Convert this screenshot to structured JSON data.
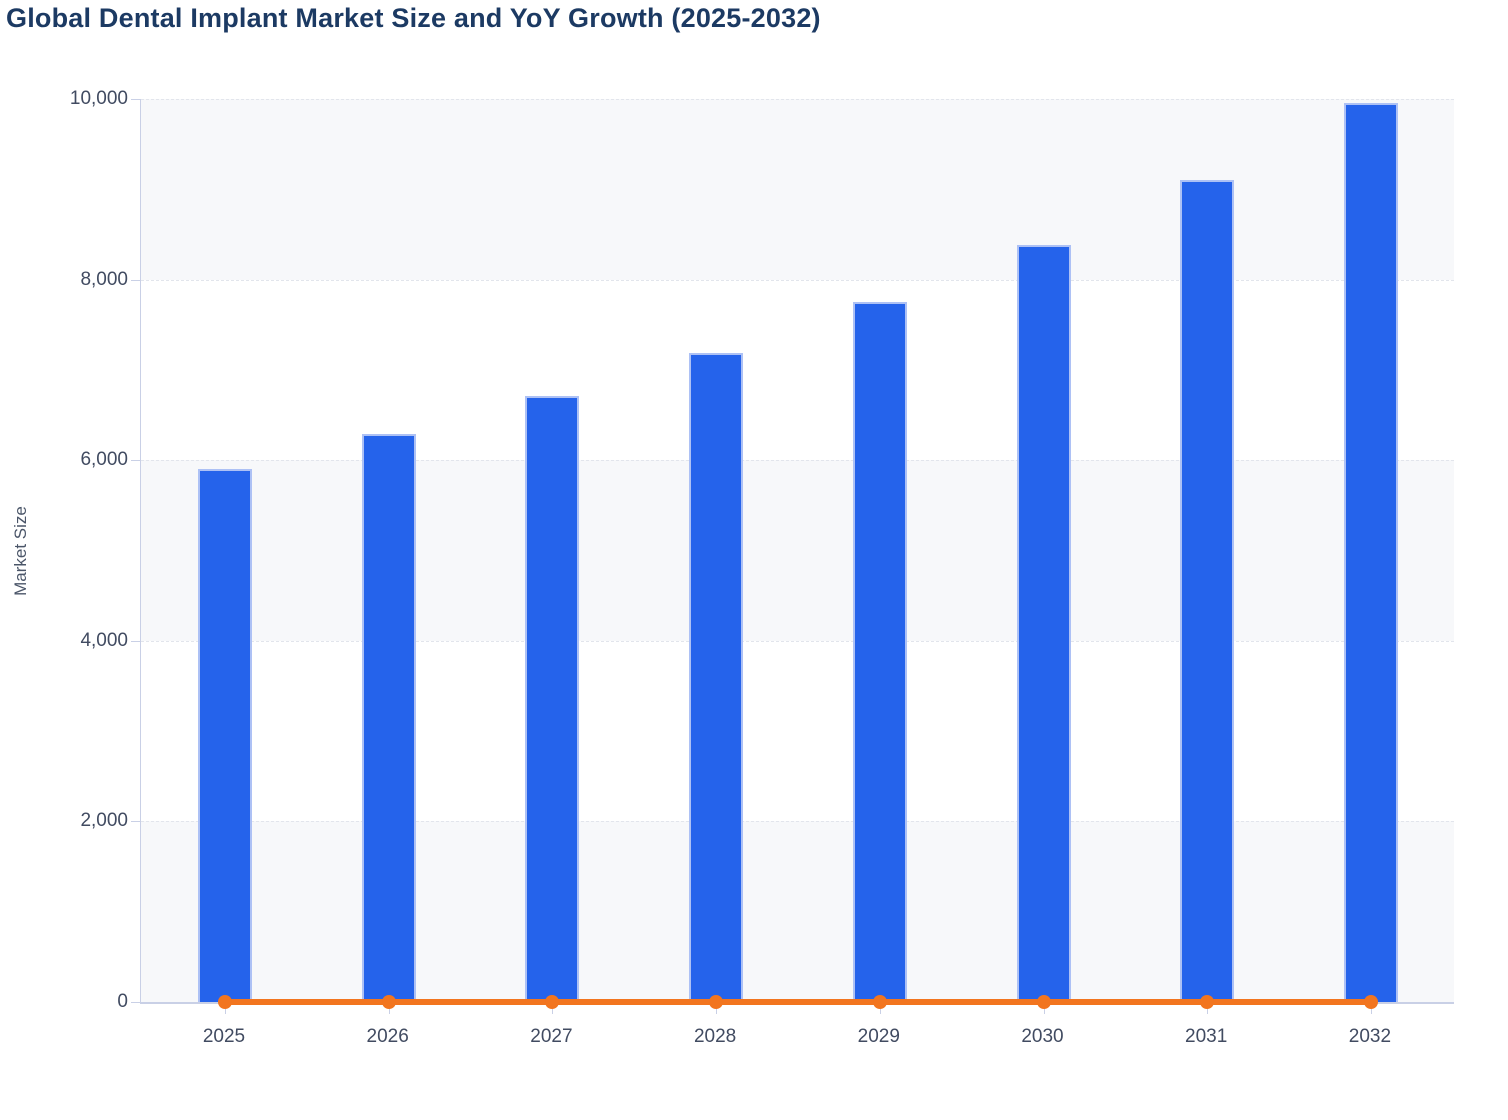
{
  "title": "Global Dental Implant Market Size and YoY Growth (2025-2032)",
  "colors": {
    "bar_fill": "#2563eb",
    "bar_edge": "#adc1f5",
    "line": "#f2751f",
    "title_text": "#1c3a63",
    "tick_label_text": "#414b61",
    "axis_title_text": "#4a5568",
    "grid_line": "#e2e5ec",
    "band_fill": "#f7f8fa",
    "axis_line": "#c9d0e6"
  },
  "chart_data": {
    "type": "combo",
    "title": "Global Dental Implant Market Size and YoY Growth (2025-2032)",
    "xlabel": "",
    "ylabel": "Market Size",
    "ylim": [
      0,
      10000
    ],
    "categories": [
      "2025",
      "2026",
      "2027",
      "2028",
      "2029",
      "2030",
      "2031",
      "2032"
    ],
    "series": [
      {
        "name": "Market Size",
        "type": "bar",
        "values": [
          5900,
          6290,
          6710,
          7190,
          7750,
          8380,
          9100,
          9960
        ]
      },
      {
        "name": "YoY Growth",
        "type": "line",
        "values": [
          0,
          6.6,
          6.7,
          7.2,
          7.8,
          8.1,
          8.6,
          9.5
        ],
        "note": "percent values plotted against the primary 0-10,000 axis, so the line renders flat along the zero baseline with a round marker at each year"
      }
    ],
    "y_ticks": [
      {
        "value": 0,
        "label": "0"
      },
      {
        "value": 2000,
        "label": "2,000"
      },
      {
        "value": 4000,
        "label": "4,000"
      },
      {
        "value": 6000,
        "label": "6,000"
      },
      {
        "value": 8000,
        "label": "8,000"
      },
      {
        "value": 10000,
        "label": "10,000"
      }
    ],
    "grid": "horizontal dashed lines every 2,000 with alternating light shaded bands",
    "legend": "none"
  }
}
